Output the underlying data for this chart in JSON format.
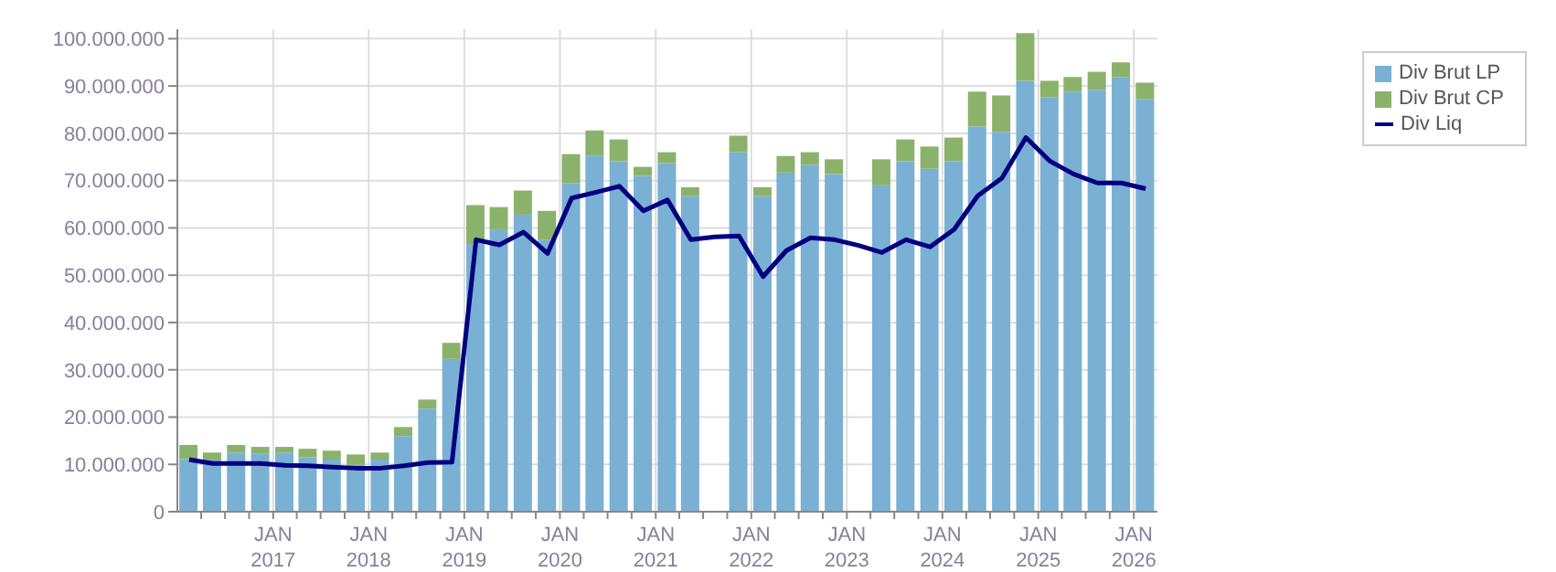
{
  "chart_data": {
    "type": "bar",
    "stacked": true,
    "grid": true,
    "legend": "top right",
    "marker": "none",
    "line_style": "solid",
    "x": [
      "2016-02-15",
      "2016-05-15",
      "2016-08-15",
      "2016-11-15",
      "2017-02-15",
      "2017-05-15",
      "2017-08-15",
      "2017-11-15",
      "2018-02-15",
      "2018-05-15",
      "2018-08-15",
      "2018-11-15",
      "2019-02-15",
      "2019-05-15",
      "2019-08-15",
      "2019-11-15",
      "2020-02-15",
      "2020-05-15",
      "2020-08-15",
      "2020-11-15",
      "2021-02-15",
      "2021-05-15",
      "2021-08-15",
      "2021-11-15",
      "2022-02-15",
      "2022-05-15",
      "2022-08-15",
      "2022-11-15",
      "2023-02-15",
      "2023-05-15",
      "2023-08-15",
      "2023-11-15",
      "2024-02-15",
      "2024-05-15",
      "2024-08-15",
      "2024-11-15",
      "2025-02-15",
      "2025-05-15",
      "2025-08-15",
      "2025-11-15",
      "2026-02-15"
    ],
    "series": [
      {
        "name": "Div Brut LP",
        "color": "#7ab0d4",
        "values": [
          11100000,
          11000000,
          12500000,
          12300000,
          12500000,
          11500000,
          11000000,
          9900000,
          11000000,
          16000000,
          21800000,
          32300000,
          56600000,
          59700000,
          62800000,
          57500000,
          69500000,
          75200000,
          74100000,
          71000000,
          73700000,
          66700000,
          null,
          76000000,
          66700000,
          71700000,
          73300000,
          71400000,
          null,
          69000000,
          74100000,
          72500000,
          74100000,
          81400000,
          80300000,
          91100000,
          87600000,
          88800000,
          89200000,
          91900000,
          87200000
        ]
      },
      {
        "name": "Div Brut CP",
        "color": "#8bb26b",
        "values": [
          3000000,
          1500000,
          1600000,
          1400000,
          1200000,
          1800000,
          1900000,
          2200000,
          1500000,
          1900000,
          1900000,
          3400000,
          8200000,
          4700000,
          5100000,
          6100000,
          6100000,
          5400000,
          4600000,
          1900000,
          2300000,
          1900000,
          null,
          3500000,
          1900000,
          3500000,
          2700000,
          3100000,
          null,
          5500000,
          4600000,
          4700000,
          5000000,
          7400000,
          7700000,
          10100000,
          3500000,
          3100000,
          3800000,
          3100000,
          3500000
        ]
      },
      {
        "name": "Div Liq",
        "type": "line",
        "color": "#000080",
        "values": [
          11000000,
          10200000,
          10200000,
          10200000,
          9800000,
          9700000,
          9400000,
          9200000,
          9200000,
          9700000,
          10400000,
          10500000,
          57500000,
          56400000,
          59100000,
          54600000,
          66300000,
          67500000,
          68800000,
          63600000,
          65900000,
          57500000,
          58100000,
          58300000,
          49700000,
          55200000,
          57900000,
          57500000,
          56300000,
          54800000,
          57500000,
          56000000,
          59700000,
          66800000,
          70500000,
          79100000,
          74100000,
          71400000,
          69500000,
          69500000,
          68300000
        ]
      }
    ],
    "ylim": [
      0,
      102000000
    ],
    "yticks": [
      {
        "value": 0,
        "label": "0"
      },
      {
        "value": 10000000,
        "label": "10.000.000"
      },
      {
        "value": 20000000,
        "label": "20.000.000"
      },
      {
        "value": 30000000,
        "label": "30.000.000"
      },
      {
        "value": 40000000,
        "label": "40.000.000"
      },
      {
        "value": 50000000,
        "label": "50.000.000"
      },
      {
        "value": 60000000,
        "label": "60.000.000"
      },
      {
        "value": 70000000,
        "label": "70.000.000"
      },
      {
        "value": 80000000,
        "label": "80.000.000"
      },
      {
        "value": 90000000,
        "label": "90.000.000"
      },
      {
        "value": 100000000,
        "label": "100.000.000"
      }
    ],
    "xlim": [
      "2016-01",
      "2026-04"
    ],
    "xticks": [
      {
        "value": "2016-04",
        "label": null
      },
      {
        "value": "2016-07",
        "label": null
      },
      {
        "value": "2016-10",
        "label": null
      },
      {
        "value": "2017-01",
        "label": "JAN 2017"
      },
      {
        "value": "2017-04",
        "label": null
      },
      {
        "value": "2017-07",
        "label": null
      },
      {
        "value": "2017-10",
        "label": null
      },
      {
        "value": "2018-01",
        "label": "JAN 2018"
      },
      {
        "value": "2018-04",
        "label": null
      },
      {
        "value": "2018-07",
        "label": null
      },
      {
        "value": "2018-10",
        "label": null
      },
      {
        "value": "2019-01",
        "label": "JAN 2019"
      },
      {
        "value": "2019-04",
        "label": null
      },
      {
        "value": "2019-07",
        "label": null
      },
      {
        "value": "2019-10",
        "label": null
      },
      {
        "value": "2020-01",
        "label": "JAN 2020"
      },
      {
        "value": "2020-04",
        "label": null
      },
      {
        "value": "2020-07",
        "label": null
      },
      {
        "value": "2020-10",
        "label": null
      },
      {
        "value": "2021-01",
        "label": "JAN 2021"
      },
      {
        "value": "2021-04",
        "label": null
      },
      {
        "value": "2021-07",
        "label": null
      },
      {
        "value": "2021-10",
        "label": null
      },
      {
        "value": "2022-01",
        "label": "JAN 2022"
      },
      {
        "value": "2022-04",
        "label": null
      },
      {
        "value": "2022-07",
        "label": null
      },
      {
        "value": "2022-10",
        "label": null
      },
      {
        "value": "2023-01",
        "label": "JAN 2023"
      },
      {
        "value": "2023-04",
        "label": null
      },
      {
        "value": "2023-07",
        "label": null
      },
      {
        "value": "2023-10",
        "label": null
      },
      {
        "value": "2024-01",
        "label": "JAN 2024"
      },
      {
        "value": "2024-04",
        "label": null
      },
      {
        "value": "2024-07",
        "label": null
      },
      {
        "value": "2024-10",
        "label": null
      },
      {
        "value": "2025-01",
        "label": "JAN 2025"
      },
      {
        "value": "2025-04",
        "label": null
      },
      {
        "value": "2025-07",
        "label": null
      },
      {
        "value": "2025-10",
        "label": null
      },
      {
        "value": "2026-01",
        "label": "JAN 2026"
      }
    ]
  }
}
